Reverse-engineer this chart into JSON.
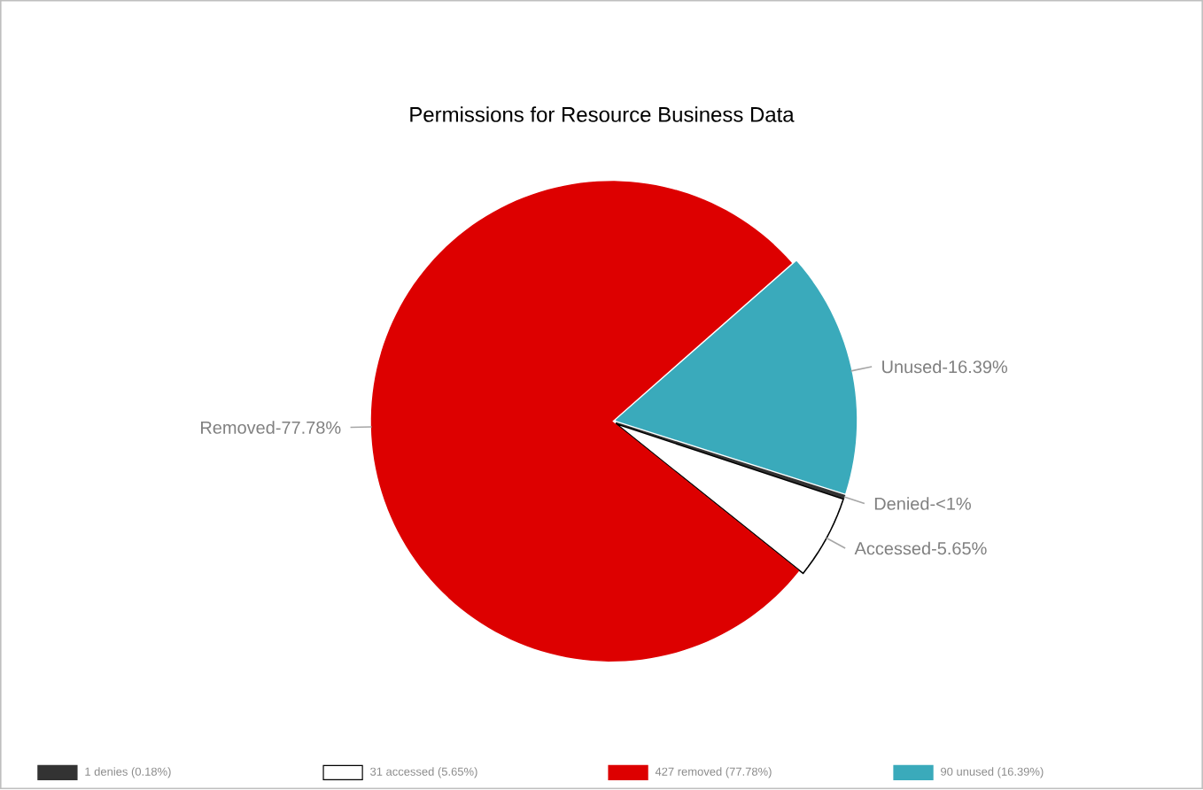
{
  "chart_data": {
    "type": "pie",
    "title": "Permissions for Resource Business Data",
    "categories": [
      "1 denies (0.18%)",
      "31 accessed (5.65%)",
      "427 removed (77.78%)",
      "90 unused (16.39%)"
    ],
    "values": [
      1,
      31,
      427,
      90
    ],
    "value_labels": [
      "Denied-<1%",
      "Accessed-5.65%",
      "Removed-77.78%",
      "Unused-16.39%"
    ],
    "colors": [
      "#333333",
      "#ffffff",
      "#dd0000",
      "#3aaabb"
    ],
    "legend": "bottom"
  }
}
